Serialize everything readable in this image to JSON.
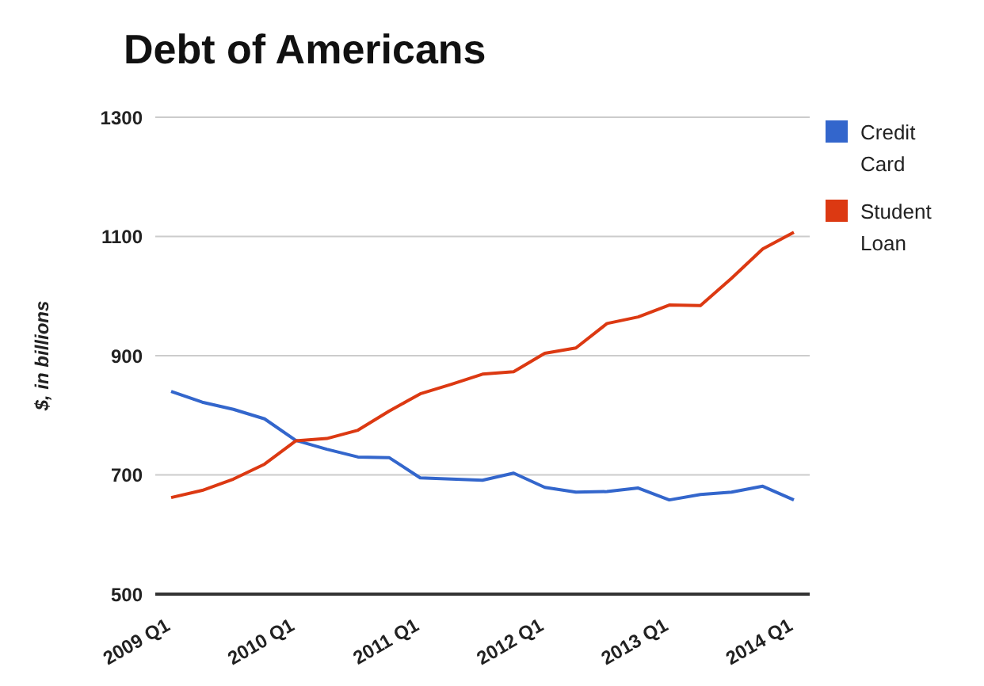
{
  "chart_data": {
    "type": "line",
    "title": "Debt of Americans",
    "ylabel": "$, in billions",
    "categories": [
      "2009 Q1",
      null,
      null,
      null,
      "2010 Q1",
      null,
      null,
      null,
      "2011 Q1",
      null,
      null,
      null,
      "2012 Q1",
      null,
      null,
      null,
      "2013 Q1",
      null,
      null,
      null,
      "2014 Q1"
    ],
    "series": [
      {
        "name": "Credit Card",
        "color": "#3366cc",
        "values": [
          840,
          822,
          810,
          794,
          758,
          743,
          730,
          729,
          695,
          693,
          691,
          703,
          679,
          671,
          672,
          678,
          658,
          667,
          671,
          681,
          658
        ]
      },
      {
        "name": "Student Loan",
        "color": "#dc3912",
        "values": [
          662,
          674,
          693,
          718,
          757,
          761,
          775,
          807,
          836,
          852,
          869,
          873,
          904,
          913,
          954,
          965,
          985,
          984,
          1030,
          1079,
          1107
        ]
      }
    ],
    "ylim": [
      500,
      1300
    ],
    "yticks": [
      500,
      700,
      900,
      1100,
      1300
    ],
    "grid": "y",
    "legend": "top right",
    "marker": "none",
    "line_style": "solid"
  }
}
